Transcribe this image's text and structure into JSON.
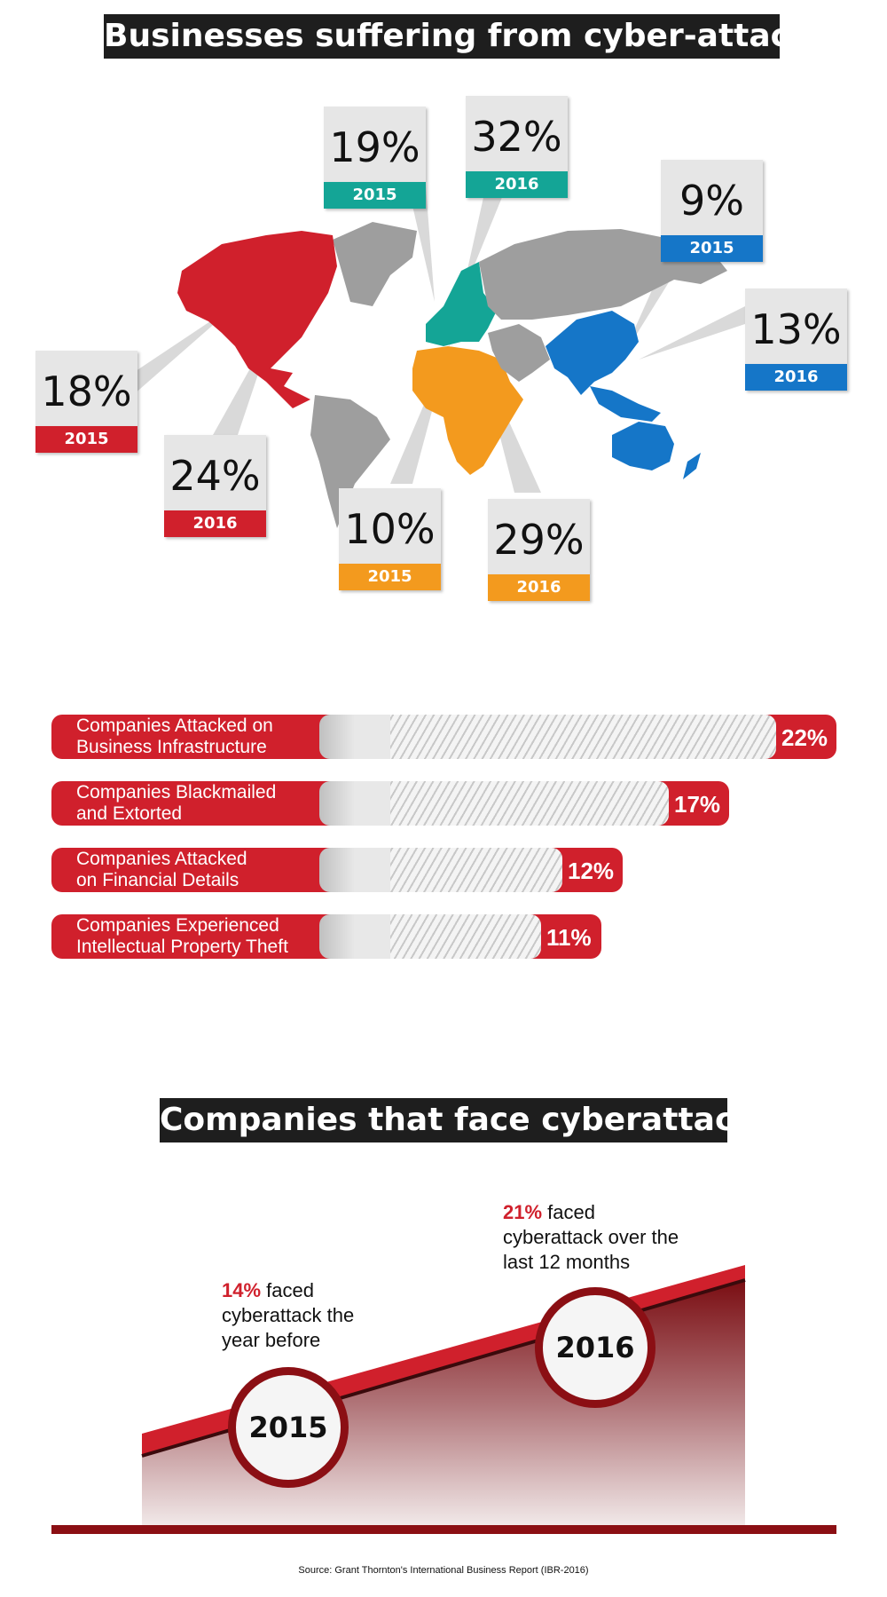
{
  "header": {
    "title": "Businesses suffering from cyber-attacks"
  },
  "colors": {
    "north_america": "#d0202c",
    "europe": "#14a596",
    "africa": "#f39a1e",
    "asia_pacific": "#1576c8",
    "gray_land": "#9e9e9e",
    "dark": "#1e1e1e",
    "deep_red": "#8b0f14"
  },
  "map": {
    "regions": [
      {
        "name": "North America",
        "stats": [
          {
            "pct": "18%",
            "year": "2015"
          },
          {
            "pct": "24%",
            "year": "2016"
          }
        ]
      },
      {
        "name": "Europe",
        "stats": [
          {
            "pct": "19%",
            "year": "2015"
          },
          {
            "pct": "32%",
            "year": "2016"
          }
        ]
      },
      {
        "name": "Asia Pacific",
        "stats": [
          {
            "pct": "9%",
            "year": "2015"
          },
          {
            "pct": "13%",
            "year": "2016"
          }
        ]
      },
      {
        "name": "Africa",
        "stats": [
          {
            "pct": "10%",
            "year": "2015"
          },
          {
            "pct": "29%",
            "year": "2016"
          }
        ]
      }
    ]
  },
  "bars": [
    {
      "label_line1": "Companies Attacked on",
      "label_line2": "Business Infrastructure",
      "value": "22%",
      "fraction": 0.22
    },
    {
      "label_line1": "Companies Blackmailed",
      "label_line2": "and Extorted",
      "value": "17%",
      "fraction": 0.17
    },
    {
      "label_line1": "Companies Attacked",
      "label_line2": "on Financial Details",
      "value": "12%",
      "fraction": 0.12
    },
    {
      "label_line1": "Companies Experienced",
      "label_line2": "Intellectual Property Theft",
      "value": "11%",
      "fraction": 0.11
    }
  ],
  "trend": {
    "title": "Companies that face cyberattack",
    "points": [
      {
        "year": "2015",
        "pct": "14%",
        "text_line1": " faced",
        "text_line2": "cyberattack the",
        "text_line3": "year before"
      },
      {
        "year": "2016",
        "pct": "21%",
        "text_line1": " faced",
        "text_line2": "cyberattack over the",
        "text_line3": "last 12 months"
      }
    ]
  },
  "footer": {
    "source": "Source: Grant Thornton's International Business Report (IBR-2016)"
  }
}
